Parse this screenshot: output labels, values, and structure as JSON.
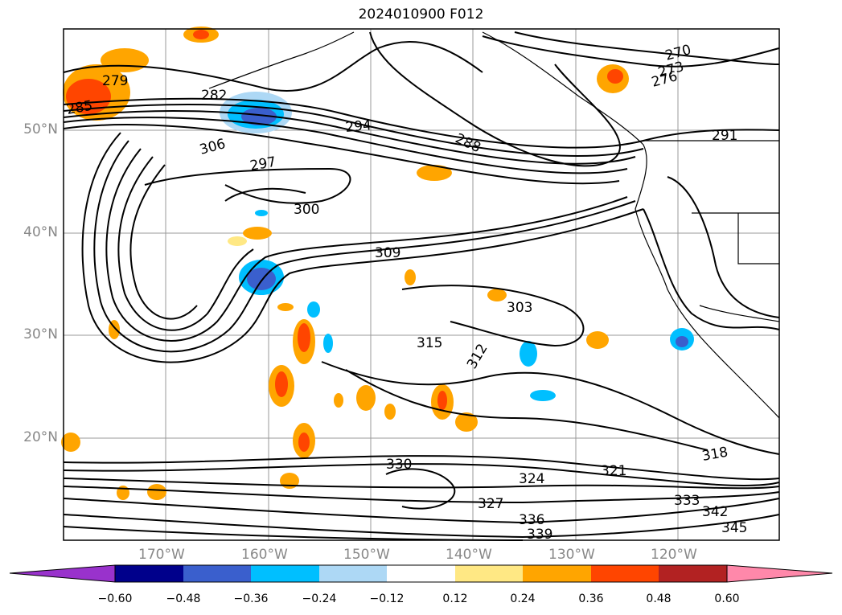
{
  "title": "2024010900 F012",
  "map": {
    "lon_labels": [
      "170°W",
      "160°W",
      "150°W",
      "140°W",
      "130°W",
      "120°W"
    ],
    "lat_labels": [
      "50°N",
      "40°N",
      "30°N",
      "20°N"
    ]
  },
  "contour_labels": [
    "270",
    "273",
    "276",
    "279",
    "282",
    "285",
    "288",
    "291",
    "294",
    "297",
    "300",
    "303",
    "306",
    "309",
    "312",
    "315",
    "318",
    "321",
    "324",
    "327",
    "330",
    "333",
    "336",
    "339",
    "342",
    "345"
  ],
  "colorbar": {
    "ticks": [
      "−0.60",
      "−0.48",
      "−0.36",
      "−0.24",
      "−0.12",
      "0.12",
      "0.24",
      "0.36",
      "0.48",
      "0.60"
    ],
    "colors": [
      "#9932cc",
      "#00008b",
      "#3a5fcd",
      "#00bfff",
      "#add8f5",
      "#ffffff",
      "#ffe884",
      "#ffa500",
      "#ff4500",
      "#b22222",
      "#ff88aa"
    ]
  },
  "colors": {
    "land_line": "#000000",
    "grid": "#999999",
    "text_gray": "#888888"
  }
}
